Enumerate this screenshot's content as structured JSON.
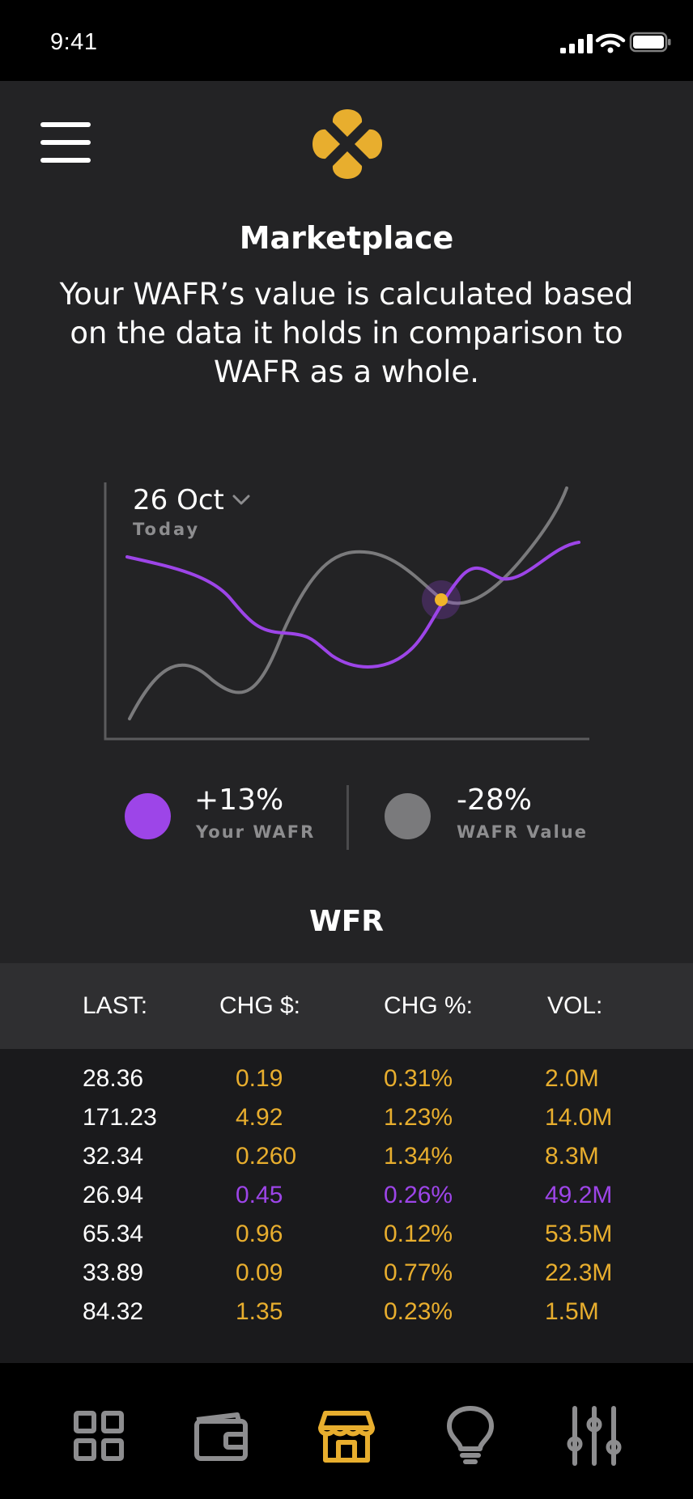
{
  "status_bar": {
    "time": "9:41"
  },
  "header": {
    "title": "Marketplace",
    "subtitle": "Your WAFR’s value is calculated based on the data it holds in comparison to WAFR as a whole."
  },
  "chart": {
    "date": "26 Oct",
    "date_sub": "Today",
    "colors": {
      "your_wafr": "#9d45e8",
      "wafr_value": "#7a7a7c",
      "highlight": "#f0b429"
    }
  },
  "legend": [
    {
      "value": "+13%",
      "label": "Your WAFR",
      "color": "#9d45e8"
    },
    {
      "value": "-28%",
      "label": "WAFR Value",
      "color": "#7a7a7c"
    }
  ],
  "table": {
    "title": "WFR",
    "columns": [
      "LAST:",
      "CHG $:",
      "CHG %:",
      "VOL:"
    ],
    "rows": [
      {
        "last": "28.36",
        "chg": "0.19",
        "pct": "0.31%",
        "vol": "2.0M",
        "tone": "gold"
      },
      {
        "last": "171.23",
        "chg": "4.92",
        "pct": "1.23%",
        "vol": "14.0M",
        "tone": "gold"
      },
      {
        "last": "32.34",
        "chg": "0.260",
        "pct": "1.34%",
        "vol": "8.3M",
        "tone": "gold"
      },
      {
        "last": "26.94",
        "chg": "0.45",
        "pct": "0.26%",
        "vol": "49.2M",
        "tone": "purple"
      },
      {
        "last": "65.34",
        "chg": "0.96",
        "pct": "0.12%",
        "vol": "53.5M",
        "tone": "gold"
      },
      {
        "last": "33.89",
        "chg": "0.09",
        "pct": "0.77%",
        "vol": "22.3M",
        "tone": "gold"
      },
      {
        "last": "84.32",
        "chg": "1.35",
        "pct": "0.23%",
        "vol": "1.5M",
        "tone": "gold"
      }
    ],
    "colors": {
      "gold": "#e8ae2e",
      "purple": "#9d45e8"
    }
  },
  "nav": {
    "items": [
      "dashboard-icon",
      "wallet-icon",
      "store-icon",
      "lightbulb-icon",
      "settings-sliders-icon"
    ],
    "active": "store-icon",
    "active_color": "#e8ae2e",
    "inactive_color": "#8d8d8f"
  }
}
